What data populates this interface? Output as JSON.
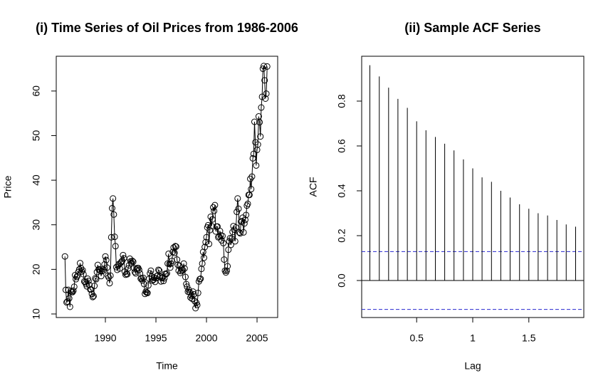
{
  "chart_data": [
    {
      "type": "line",
      "title": "(i) Time Series of Oil Prices from 1986-2006",
      "xlabel": "Time",
      "ylabel": "Price",
      "markers": "circle",
      "color": "#000000",
      "x": [
        1986,
        1986.083,
        1986.167,
        1986.25,
        1986.333,
        1986.417,
        1986.5,
        1986.583,
        1986.667,
        1986.75,
        1986.833,
        1986.917,
        1987,
        1987.083,
        1987.167,
        1987.25,
        1987.333,
        1987.417,
        1987.5,
        1987.583,
        1987.667,
        1987.75,
        1987.833,
        1987.917,
        1988,
        1988.083,
        1988.167,
        1988.25,
        1988.333,
        1988.417,
        1988.5,
        1988.583,
        1988.667,
        1988.75,
        1988.833,
        1988.917,
        1989,
        1989.083,
        1989.167,
        1989.25,
        1989.333,
        1989.417,
        1989.5,
        1989.583,
        1989.667,
        1989.75,
        1989.833,
        1989.917,
        1990,
        1990.083,
        1990.167,
        1990.25,
        1990.333,
        1990.417,
        1990.5,
        1990.583,
        1990.667,
        1990.75,
        1990.833,
        1990.917,
        1991,
        1991.083,
        1991.167,
        1991.25,
        1991.333,
        1991.417,
        1991.5,
        1991.583,
        1991.667,
        1991.75,
        1991.833,
        1991.917,
        1992,
        1992.083,
        1992.167,
        1992.25,
        1992.333,
        1992.417,
        1992.5,
        1992.583,
        1992.667,
        1992.75,
        1992.833,
        1992.917,
        1993,
        1993.083,
        1993.167,
        1993.25,
        1993.333,
        1993.417,
        1993.5,
        1993.583,
        1993.667,
        1993.75,
        1993.833,
        1993.917,
        1994,
        1994.083,
        1994.167,
        1994.25,
        1994.333,
        1994.417,
        1994.5,
        1994.583,
        1994.667,
        1994.75,
        1994.833,
        1994.917,
        1995,
        1995.083,
        1995.167,
        1995.25,
        1995.333,
        1995.417,
        1995.5,
        1995.583,
        1995.667,
        1995.75,
        1995.833,
        1995.917,
        1996,
        1996.083,
        1996.167,
        1996.25,
        1996.333,
        1996.417,
        1996.5,
        1996.583,
        1996.667,
        1996.75,
        1996.833,
        1996.917,
        1997,
        1997.083,
        1997.167,
        1997.25,
        1997.333,
        1997.417,
        1997.5,
        1997.583,
        1997.667,
        1997.75,
        1997.833,
        1997.917,
        1998,
        1998.083,
        1998.167,
        1998.25,
        1998.333,
        1998.417,
        1998.5,
        1998.583,
        1998.667,
        1998.75,
        1998.833,
        1998.917,
        1999,
        1999.083,
        1999.167,
        1999.25,
        1999.333,
        1999.417,
        1999.5,
        1999.583,
        1999.667,
        1999.75,
        1999.833,
        1999.917,
        2000,
        2000.083,
        2000.167,
        2000.25,
        2000.333,
        2000.417,
        2000.5,
        2000.583,
        2000.667,
        2000.75,
        2000.833,
        2000.917,
        2001,
        2001.083,
        2001.167,
        2001.25,
        2001.333,
        2001.417,
        2001.5,
        2001.583,
        2001.667,
        2001.75,
        2001.833,
        2001.917,
        2002,
        2002.083,
        2002.167,
        2002.25,
        2002.333,
        2002.417,
        2002.5,
        2002.583,
        2002.667,
        2002.75,
        2002.833,
        2002.917,
        2003,
        2003.083,
        2003.167,
        2003.25,
        2003.333,
        2003.417,
        2003.5,
        2003.583,
        2003.667,
        2003.75,
        2003.833,
        2003.917,
        2004,
        2004.083,
        2004.167,
        2004.25,
        2004.333,
        2004.417,
        2004.5,
        2004.583,
        2004.667,
        2004.75,
        2004.833,
        2004.917,
        2005,
        2005.083,
        2005.167,
        2005.25,
        2005.333,
        2005.417,
        2005.5,
        2005.583,
        2005.667,
        2005.75,
        2005.833,
        2005.917,
        2006
      ],
      "values": [
        22.9,
        15.4,
        12.6,
        12.8,
        15.4,
        13.5,
        11.6,
        15.1,
        14.9,
        14.9,
        15.2,
        16.1,
        18.7,
        17.8,
        18.3,
        18.6,
        19.4,
        20.0,
        21.4,
        20.3,
        19.5,
        19.8,
        18.9,
        17.3,
        17.1,
        16.7,
        16.2,
        17.9,
        17.4,
        16.5,
        15.5,
        15.5,
        14.5,
        13.8,
        14.0,
        16.3,
        18.0,
        17.8,
        19.4,
        21.0,
        20.0,
        20.0,
        19.6,
        18.5,
        19.6,
        20.1,
        19.8,
        21.1,
        22.9,
        22.1,
        20.4,
        18.6,
        18.2,
        16.9,
        18.6,
        27.2,
        33.7,
        35.9,
        32.3,
        27.3,
        25.2,
        20.5,
        19.9,
        20.8,
        21.2,
        20.2,
        21.4,
        21.7,
        21.9,
        23.2,
        22.5,
        19.5,
        18.8,
        19.0,
        18.9,
        20.2,
        20.9,
        22.4,
        21.8,
        21.4,
        21.9,
        21.7,
        20.3,
        19.4,
        19.1,
        20.1,
        20.3,
        20.3,
        19.9,
        19.1,
        17.9,
        18.0,
        17.5,
        18.1,
        16.7,
        14.5,
        15.0,
        14.8,
        14.7,
        16.4,
        17.9,
        19.1,
        19.7,
        18.4,
        17.5,
        17.7,
        18.1,
        17.2,
        18.0,
        18.5,
        18.6,
        19.9,
        19.7,
        18.4,
        17.3,
        18.0,
        18.2,
        17.4,
        18.0,
        19.0,
        18.9,
        19.1,
        21.3,
        23.5,
        21.2,
        20.4,
        21.3,
        21.9,
        23.9,
        24.9,
        23.7,
        25.2,
        25.1,
        22.2,
        21.0,
        19.7,
        20.8,
        19.2,
        19.6,
        19.9,
        19.8,
        21.3,
        20.2,
        18.3,
        16.7,
        16.1,
        15.0,
        15.4,
        14.9,
        13.7,
        14.1,
        13.4,
        15.0,
        14.4,
        12.9,
        11.3,
        12.5,
        12.0,
        14.7,
        17.3,
        17.8,
        17.9,
        20.1,
        21.3,
        23.9,
        22.6,
        25.0,
        26.1,
        27.2,
        29.4,
        29.9,
        25.7,
        28.8,
        31.8,
        29.7,
        31.2,
        33.9,
        33.1,
        34.4,
        28.5,
        29.6,
        29.6,
        27.2,
        27.4,
        28.6,
        27.6,
        26.5,
        27.5,
        25.9,
        22.2,
        19.7,
        19.3,
        19.7,
        20.7,
        24.4,
        26.3,
        27.0,
        25.5,
        26.9,
        28.4,
        29.7,
        28.9,
        26.3,
        29.4,
        32.9,
        35.9,
        33.6,
        28.3,
        28.1,
        30.7,
        30.8,
        31.6,
        28.3,
        30.3,
        31.1,
        32.2,
        34.3,
        34.7,
        36.7,
        36.7,
        40.3,
        38.0,
        40.8,
        44.9,
        45.9,
        53.1,
        48.5,
        43.3,
        46.8,
        48.0,
        54.3,
        53.0,
        49.8,
        56.3,
        58.7,
        65.0,
        65.6,
        62.4,
        58.3,
        59.4,
        65.5
      ],
      "xlim": [
        1985.14,
        2007.04
      ],
      "xticks": [
        1990,
        1995,
        2000,
        2005
      ],
      "ylim": [
        9.2,
        67.8
      ],
      "yticks": [
        10,
        20,
        30,
        40,
        50,
        60
      ]
    },
    {
      "type": "acf",
      "title": "(ii) Sample ACF Series",
      "xlabel": "Lag",
      "ylabel": "ACF",
      "color": "#000000",
      "x": [
        0.083,
        0.167,
        0.25,
        0.333,
        0.417,
        0.5,
        0.583,
        0.667,
        0.75,
        0.833,
        0.917,
        1,
        1.083,
        1.167,
        1.25,
        1.333,
        1.417,
        1.5,
        1.583,
        1.667,
        1.75,
        1.833,
        1.917
      ],
      "values": [
        0.96,
        0.91,
        0.86,
        0.81,
        0.77,
        0.71,
        0.67,
        0.64,
        0.61,
        0.58,
        0.54,
        0.5,
        0.46,
        0.44,
        0.4,
        0.37,
        0.34,
        0.32,
        0.3,
        0.29,
        0.27,
        0.25,
        0.24
      ],
      "ci_lines": [
        0.129,
        -0.129
      ],
      "ci_color": "#2828d0",
      "xlim": [
        0.01,
        1.99
      ],
      "xticks": [
        0.5,
        1,
        1.5
      ],
      "xtick_labels_fix": null,
      "ylim": [
        -0.165,
        1.0
      ],
      "yticks": [
        {
          "value": 0,
          "label": "0.0"
        },
        0.2,
        0.4,
        0.6,
        0.8
      ]
    }
  ]
}
